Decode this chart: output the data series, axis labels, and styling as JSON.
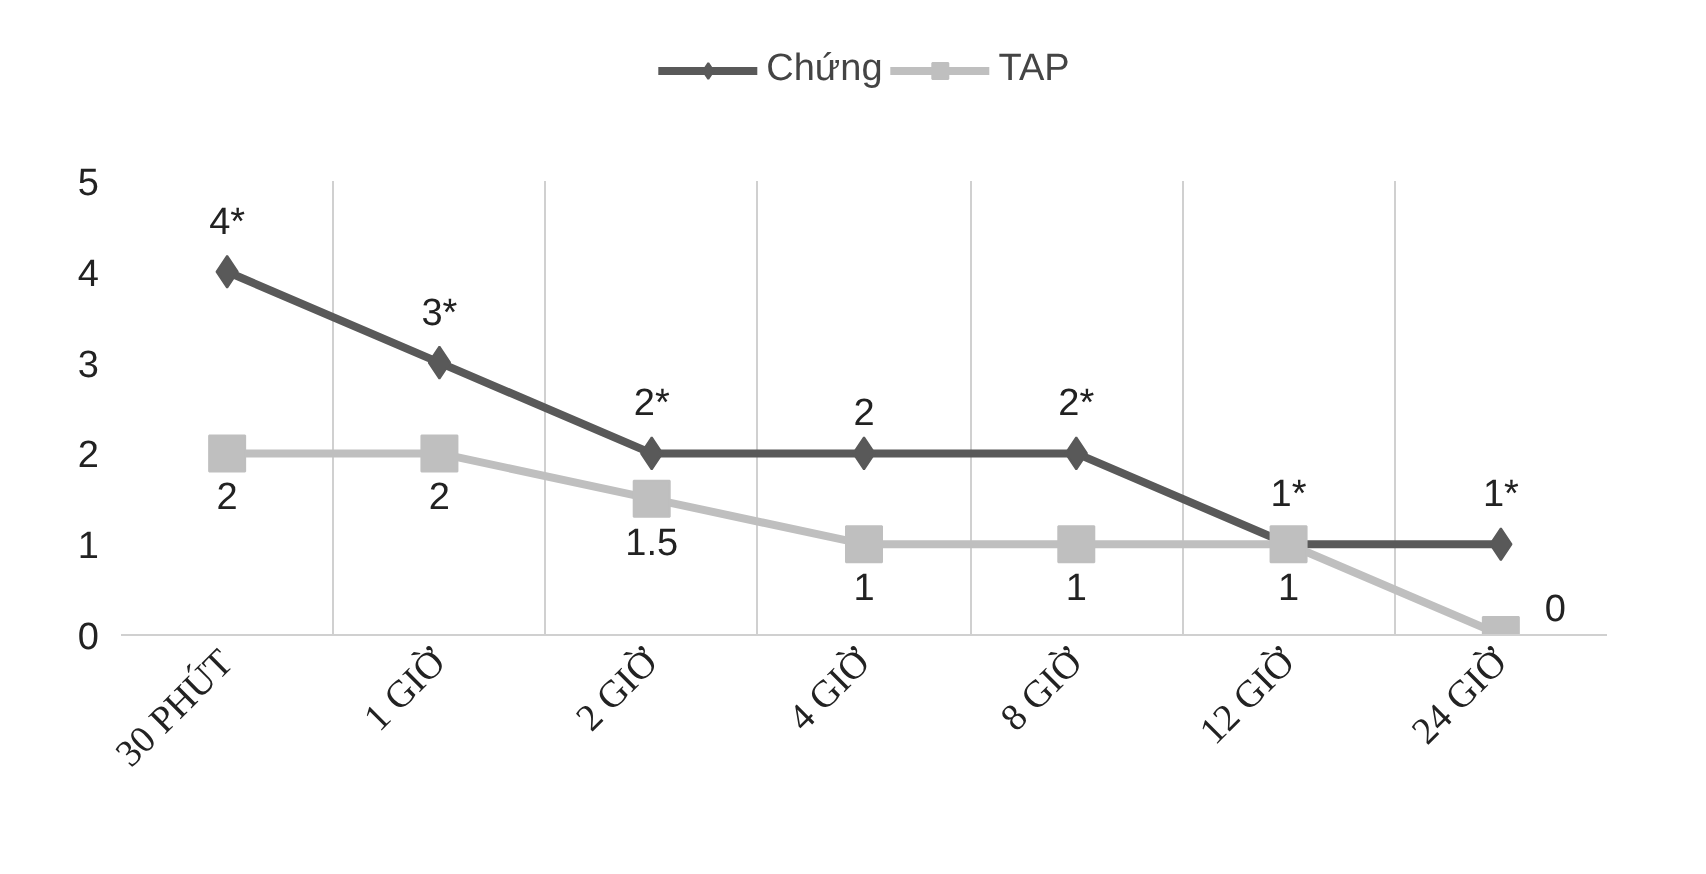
{
  "chart_data": {
    "type": "line",
    "categories": [
      "30 PHÚT",
      "1 GIỜ",
      "2 GIỜ",
      "4 GIỜ",
      "8 GIỜ",
      "12 GIỜ",
      "24 GIỜ"
    ],
    "series": [
      {
        "name": "Chứng",
        "color": "#595959",
        "marker": "diamond",
        "values": [
          4,
          3,
          2,
          2,
          2,
          1,
          1
        ],
        "value_labels": [
          "4*",
          "3*",
          "2*",
          "2",
          "2*",
          "1*",
          "1*"
        ]
      },
      {
        "name": "TAP",
        "color": "#bfbfbf",
        "marker": "square",
        "values": [
          2,
          2,
          1.5,
          1,
          1,
          1,
          0
        ],
        "value_labels": [
          "2",
          "2",
          "1.5",
          "1",
          "1",
          "1",
          "0"
        ]
      }
    ],
    "ylim": [
      0,
      5
    ],
    "yticks": [
      0,
      1,
      2,
      3,
      4,
      5
    ],
    "grid": "x",
    "legend": "top"
  }
}
